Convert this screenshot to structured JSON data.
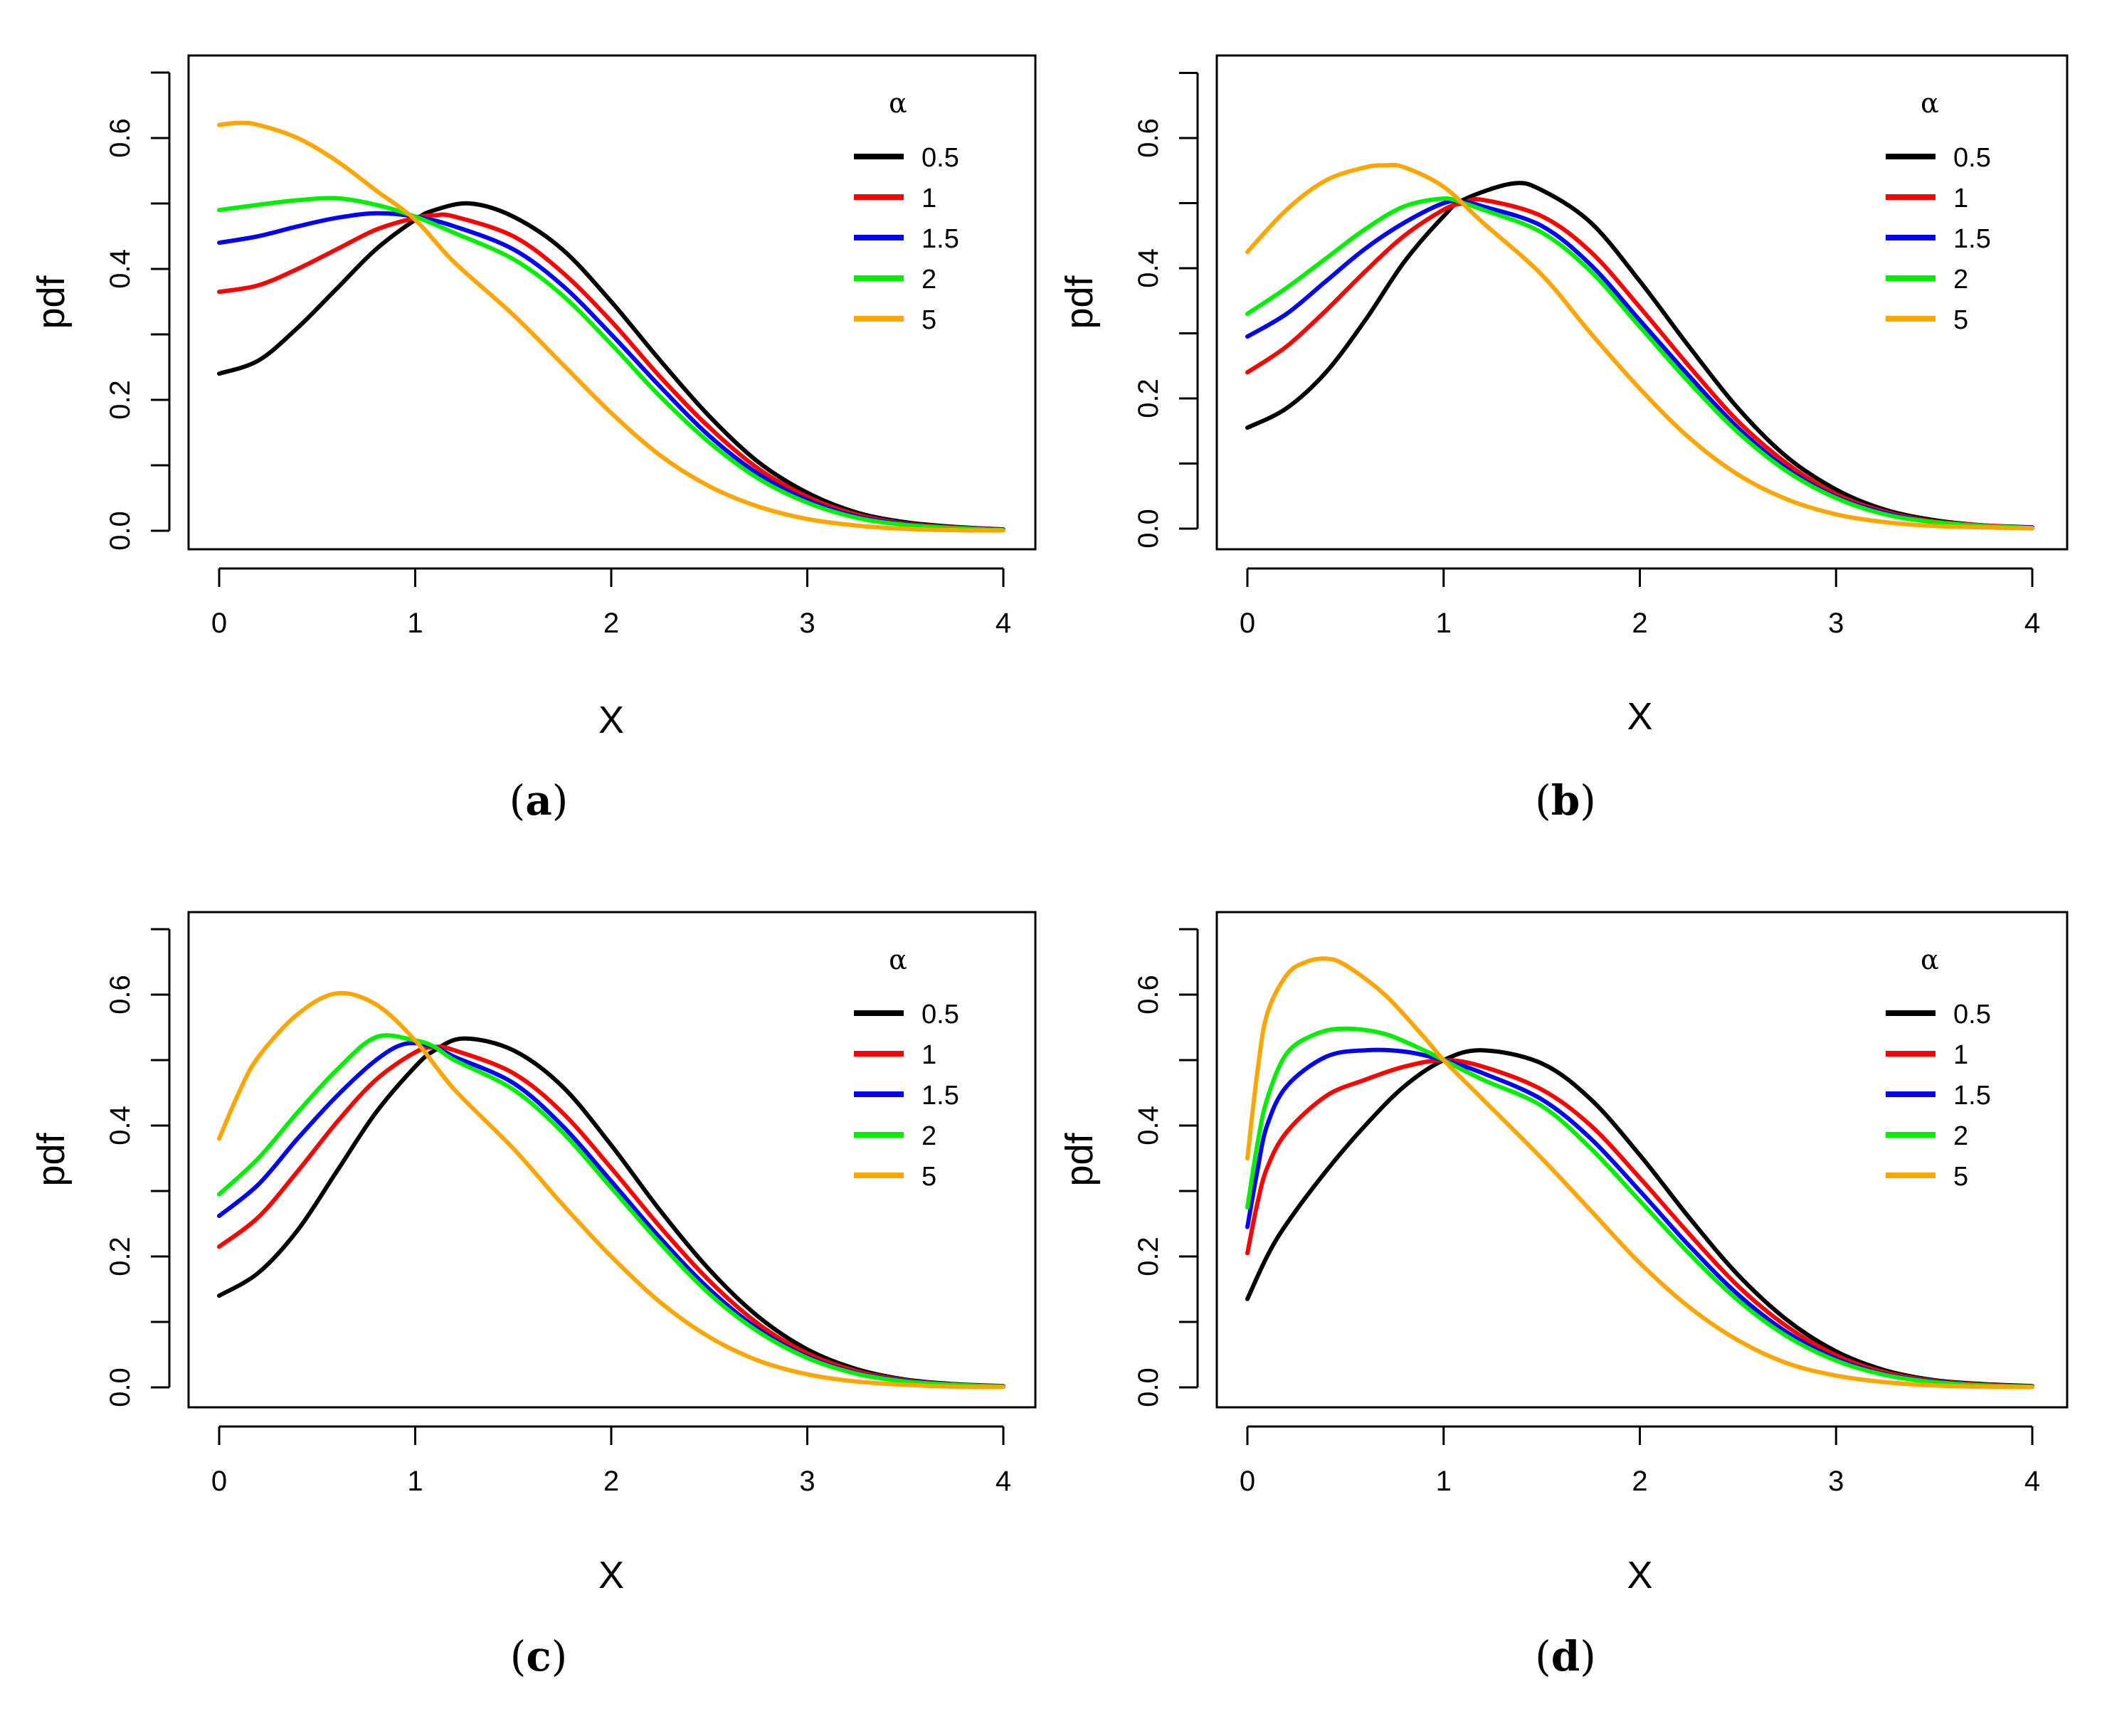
{
  "figure": {
    "legend_title": "α",
    "series_colors": [
      "#000000",
      "#ff0000",
      "#0000ff",
      "#00ee00",
      "#ffa500"
    ]
  },
  "chart_data": [
    {
      "type": "line",
      "panel_label": "(a)",
      "panel_letter": "a",
      "xlabel": "X",
      "ylabel": "pdf",
      "xlim": [
        0,
        4
      ],
      "ylim": [
        0,
        0.7
      ],
      "x_ticks": [
        0,
        1,
        2,
        3,
        4
      ],
      "y_ticks": [
        0.0,
        0.2,
        0.4,
        0.6
      ],
      "y_tick_labels": [
        "0.0",
        "0.2",
        "0.4",
        "0.6"
      ],
      "legend_title": "α",
      "legend_position": "top-right",
      "series": [
        {
          "name": "0.5",
          "color": "#000000",
          "x": [
            0,
            0.2,
            0.4,
            0.6,
            0.8,
            1.0,
            1.1,
            1.28,
            1.5,
            1.75,
            2.0,
            2.25,
            2.5,
            2.75,
            3.0,
            3.25,
            3.5,
            3.75,
            4.0
          ],
          "y": [
            0.24,
            0.26,
            0.31,
            0.37,
            0.43,
            0.475,
            0.49,
            0.5,
            0.48,
            0.43,
            0.35,
            0.26,
            0.175,
            0.105,
            0.058,
            0.028,
            0.013,
            0.006,
            0.002
          ]
        },
        {
          "name": "1",
          "color": "#ff0000",
          "x": [
            0,
            0.2,
            0.4,
            0.6,
            0.8,
            1.0,
            1.1,
            1.2,
            1.5,
            1.75,
            2.0,
            2.25,
            2.5,
            2.75,
            3.0,
            3.25,
            3.5,
            3.75,
            4.0
          ],
          "y": [
            0.365,
            0.375,
            0.4,
            0.43,
            0.46,
            0.478,
            0.482,
            0.48,
            0.45,
            0.395,
            0.32,
            0.235,
            0.158,
            0.095,
            0.052,
            0.025,
            0.011,
            0.005,
            0.002
          ]
        },
        {
          "name": "1.5",
          "color": "#0000ff",
          "x": [
            0,
            0.2,
            0.4,
            0.6,
            0.8,
            1.0,
            1.2,
            1.5,
            1.75,
            2.0,
            2.25,
            2.5,
            2.75,
            3.0,
            3.25,
            3.5,
            3.75,
            4.0
          ],
          "y": [
            0.44,
            0.45,
            0.465,
            0.478,
            0.485,
            0.48,
            0.465,
            0.43,
            0.375,
            0.3,
            0.22,
            0.145,
            0.087,
            0.047,
            0.022,
            0.01,
            0.004,
            0.002
          ]
        },
        {
          "name": "2",
          "color": "#00ee00",
          "x": [
            0,
            0.2,
            0.4,
            0.6,
            0.8,
            1.0,
            1.2,
            1.5,
            1.75,
            2.0,
            2.25,
            2.5,
            2.75,
            3.0,
            3.25,
            3.5,
            3.75,
            4.0
          ],
          "y": [
            0.49,
            0.498,
            0.505,
            0.508,
            0.498,
            0.48,
            0.455,
            0.415,
            0.36,
            0.285,
            0.205,
            0.135,
            0.08,
            0.043,
            0.02,
            0.009,
            0.004,
            0.001
          ]
        },
        {
          "name": "5",
          "color": "#ffa500",
          "x": [
            0,
            0.1,
            0.2,
            0.4,
            0.6,
            0.8,
            1.0,
            1.2,
            1.5,
            1.75,
            2.0,
            2.25,
            2.5,
            2.75,
            3.0,
            3.25,
            3.5,
            3.75,
            4.0
          ],
          "y": [
            0.62,
            0.623,
            0.62,
            0.6,
            0.565,
            0.52,
            0.475,
            0.41,
            0.33,
            0.255,
            0.18,
            0.115,
            0.068,
            0.037,
            0.018,
            0.008,
            0.003,
            0.001,
            0.0005
          ]
        }
      ]
    },
    {
      "type": "line",
      "panel_label": "(b)",
      "panel_letter": "b",
      "xlabel": "X",
      "ylabel": "pdf",
      "xlim": [
        0,
        4
      ],
      "ylim": [
        0,
        0.7
      ],
      "x_ticks": [
        0,
        1,
        2,
        3,
        4
      ],
      "y_ticks": [
        0.0,
        0.2,
        0.4,
        0.6
      ],
      "y_tick_labels": [
        "0.0",
        "0.2",
        "0.4",
        "0.6"
      ],
      "legend_title": "α",
      "legend_position": "top-right",
      "series": [
        {
          "name": "0.5",
          "color": "#000000",
          "x": [
            0,
            0.2,
            0.4,
            0.6,
            0.8,
            1.0,
            1.1,
            1.35,
            1.5,
            1.75,
            2.0,
            2.25,
            2.5,
            2.75,
            3.0,
            3.25,
            3.5,
            3.75,
            4.0
          ],
          "y": [
            0.155,
            0.185,
            0.24,
            0.32,
            0.41,
            0.48,
            0.505,
            0.53,
            0.52,
            0.47,
            0.38,
            0.28,
            0.185,
            0.11,
            0.06,
            0.029,
            0.013,
            0.005,
            0.002
          ]
        },
        {
          "name": "1",
          "color": "#ff0000",
          "x": [
            0,
            0.2,
            0.4,
            0.6,
            0.8,
            1.0,
            1.1,
            1.2,
            1.5,
            1.75,
            2.0,
            2.25,
            2.5,
            2.75,
            3.0,
            3.25,
            3.5,
            3.75,
            4.0
          ],
          "y": [
            0.24,
            0.28,
            0.335,
            0.395,
            0.45,
            0.49,
            0.5,
            0.505,
            0.48,
            0.425,
            0.34,
            0.25,
            0.165,
            0.1,
            0.053,
            0.026,
            0.011,
            0.005,
            0.002
          ]
        },
        {
          "name": "1.5",
          "color": "#0000ff",
          "x": [
            0,
            0.2,
            0.4,
            0.6,
            0.8,
            1.0,
            1.1,
            1.2,
            1.5,
            1.75,
            2.0,
            2.25,
            2.5,
            2.75,
            3.0,
            3.25,
            3.5,
            3.75,
            4.0
          ],
          "y": [
            0.295,
            0.33,
            0.38,
            0.43,
            0.47,
            0.5,
            0.502,
            0.495,
            0.465,
            0.405,
            0.32,
            0.235,
            0.155,
            0.092,
            0.049,
            0.024,
            0.01,
            0.004,
            0.002
          ]
        },
        {
          "name": "2",
          "color": "#00ee00",
          "x": [
            0,
            0.2,
            0.4,
            0.6,
            0.8,
            1.0,
            1.1,
            1.2,
            1.5,
            1.75,
            2.0,
            2.25,
            2.5,
            2.75,
            3.0,
            3.25,
            3.5,
            3.75,
            4.0
          ],
          "y": [
            0.33,
            0.37,
            0.415,
            0.46,
            0.495,
            0.507,
            0.5,
            0.49,
            0.455,
            0.395,
            0.31,
            0.225,
            0.148,
            0.088,
            0.047,
            0.022,
            0.01,
            0.004,
            0.001
          ]
        },
        {
          "name": "5",
          "color": "#ffa500",
          "x": [
            0,
            0.2,
            0.4,
            0.6,
            0.7,
            0.8,
            1.0,
            1.2,
            1.5,
            1.75,
            2.0,
            2.25,
            2.5,
            2.75,
            3.0,
            3.25,
            3.5,
            3.75,
            4.0
          ],
          "y": [
            0.425,
            0.49,
            0.535,
            0.555,
            0.558,
            0.555,
            0.525,
            0.47,
            0.39,
            0.3,
            0.215,
            0.14,
            0.083,
            0.045,
            0.022,
            0.01,
            0.004,
            0.002,
            0.0005
          ]
        }
      ]
    },
    {
      "type": "line",
      "panel_label": "(c)",
      "panel_letter": "c",
      "xlabel": "X",
      "ylabel": "pdf",
      "xlim": [
        0,
        4
      ],
      "ylim": [
        0,
        0.7
      ],
      "x_ticks": [
        0,
        1,
        2,
        3,
        4
      ],
      "y_ticks": [
        0.0,
        0.2,
        0.4,
        0.6
      ],
      "y_tick_labels": [
        "0.0",
        "0.2",
        "0.4",
        "0.6"
      ],
      "legend_title": "α",
      "legend_position": "top-right",
      "series": [
        {
          "name": "0.5",
          "color": "#000000",
          "x": [
            0,
            0.2,
            0.4,
            0.6,
            0.8,
            1.0,
            1.1,
            1.25,
            1.5,
            1.75,
            2.0,
            2.25,
            2.5,
            2.75,
            3.0,
            3.25,
            3.5,
            3.75,
            4.0
          ],
          "y": [
            0.14,
            0.175,
            0.24,
            0.33,
            0.42,
            0.49,
            0.515,
            0.533,
            0.515,
            0.46,
            0.37,
            0.27,
            0.18,
            0.108,
            0.058,
            0.028,
            0.012,
            0.005,
            0.002
          ]
        },
        {
          "name": "1",
          "color": "#ff0000",
          "x": [
            0,
            0.2,
            0.4,
            0.6,
            0.8,
            1.0,
            1.1,
            1.2,
            1.5,
            1.75,
            2.0,
            2.25,
            2.5,
            2.75,
            3.0,
            3.25,
            3.5,
            3.75,
            4.0
          ],
          "y": [
            0.215,
            0.26,
            0.33,
            0.405,
            0.47,
            0.512,
            0.52,
            0.515,
            0.48,
            0.42,
            0.335,
            0.245,
            0.163,
            0.097,
            0.052,
            0.025,
            0.011,
            0.004,
            0.002
          ]
        },
        {
          "name": "1.5",
          "color": "#0000ff",
          "x": [
            0,
            0.2,
            0.4,
            0.6,
            0.8,
            0.95,
            1.1,
            1.2,
            1.5,
            1.75,
            2.0,
            2.25,
            2.5,
            2.75,
            3.0,
            3.25,
            3.5,
            3.75,
            4.0
          ],
          "y": [
            0.262,
            0.31,
            0.38,
            0.445,
            0.5,
            0.525,
            0.52,
            0.505,
            0.465,
            0.4,
            0.315,
            0.228,
            0.15,
            0.089,
            0.047,
            0.022,
            0.01,
            0.004,
            0.001
          ]
        },
        {
          "name": "2",
          "color": "#00ee00",
          "x": [
            0,
            0.2,
            0.4,
            0.6,
            0.8,
            1.0,
            1.1,
            1.2,
            1.5,
            1.75,
            2.0,
            2.25,
            2.5,
            2.75,
            3.0,
            3.25,
            3.5,
            3.75,
            4.0
          ],
          "y": [
            0.295,
            0.35,
            0.42,
            0.485,
            0.535,
            0.53,
            0.52,
            0.5,
            0.455,
            0.39,
            0.305,
            0.22,
            0.143,
            0.085,
            0.045,
            0.021,
            0.009,
            0.004,
            0.001
          ]
        },
        {
          "name": "5",
          "color": "#ffa500",
          "x": [
            0,
            0.1,
            0.2,
            0.4,
            0.6,
            0.8,
            1.0,
            1.2,
            1.5,
            1.75,
            2.0,
            2.25,
            2.5,
            2.75,
            3.0,
            3.25,
            3.5,
            3.75,
            4.0
          ],
          "y": [
            0.38,
            0.45,
            0.505,
            0.57,
            0.602,
            0.585,
            0.53,
            0.455,
            0.365,
            0.28,
            0.2,
            0.13,
            0.077,
            0.041,
            0.02,
            0.009,
            0.004,
            0.001,
            0.0005
          ]
        }
      ]
    },
    {
      "type": "line",
      "panel_label": "(d)",
      "panel_letter": "d",
      "xlabel": "X",
      "ylabel": "pdf",
      "xlim": [
        0,
        4
      ],
      "ylim": [
        0,
        0.7
      ],
      "x_ticks": [
        0,
        1,
        2,
        3,
        4
      ],
      "y_ticks": [
        0.0,
        0.2,
        0.4,
        0.6
      ],
      "y_tick_labels": [
        "0.0",
        "0.2",
        "0.4",
        "0.6"
      ],
      "legend_title": "α",
      "legend_position": "top-right",
      "series": [
        {
          "name": "0.5",
          "color": "#000000",
          "x": [
            0,
            0.1,
            0.2,
            0.4,
            0.6,
            0.8,
            1.0,
            1.2,
            1.5,
            1.75,
            2.0,
            2.25,
            2.5,
            2.75,
            3.0,
            3.25,
            3.5,
            3.75,
            4.0
          ],
          "y": [
            0.135,
            0.2,
            0.25,
            0.33,
            0.4,
            0.46,
            0.5,
            0.515,
            0.495,
            0.44,
            0.355,
            0.26,
            0.172,
            0.103,
            0.055,
            0.026,
            0.011,
            0.005,
            0.002
          ]
        },
        {
          "name": "1",
          "color": "#ff0000",
          "x": [
            0,
            0.05,
            0.1,
            0.2,
            0.4,
            0.6,
            0.8,
            1.0,
            1.2,
            1.5,
            1.75,
            2.0,
            2.25,
            2.5,
            2.75,
            3.0,
            3.25,
            3.5,
            3.75,
            4.0
          ],
          "y": [
            0.205,
            0.28,
            0.335,
            0.39,
            0.445,
            0.47,
            0.49,
            0.5,
            0.49,
            0.455,
            0.4,
            0.32,
            0.235,
            0.155,
            0.093,
            0.049,
            0.023,
            0.01,
            0.004,
            0.001
          ]
        },
        {
          "name": "1.5",
          "color": "#0000ff",
          "x": [
            0,
            0.05,
            0.1,
            0.2,
            0.4,
            0.6,
            0.8,
            1.0,
            1.2,
            1.5,
            1.75,
            2.0,
            2.25,
            2.5,
            2.75,
            3.0,
            3.25,
            3.5,
            3.75,
            4.0
          ],
          "y": [
            0.245,
            0.33,
            0.4,
            0.46,
            0.505,
            0.515,
            0.513,
            0.5,
            0.48,
            0.44,
            0.38,
            0.3,
            0.217,
            0.142,
            0.084,
            0.044,
            0.02,
            0.009,
            0.003,
            0.001
          ]
        },
        {
          "name": "2",
          "color": "#00ee00",
          "x": [
            0,
            0.05,
            0.1,
            0.2,
            0.35,
            0.5,
            0.7,
            0.9,
            1.0,
            1.2,
            1.5,
            1.75,
            2.0,
            2.25,
            2.5,
            2.75,
            3.0,
            3.25,
            3.5,
            3.75,
            4.0
          ],
          "y": [
            0.275,
            0.37,
            0.44,
            0.51,
            0.54,
            0.548,
            0.54,
            0.515,
            0.5,
            0.47,
            0.43,
            0.365,
            0.285,
            0.205,
            0.133,
            0.078,
            0.041,
            0.019,
            0.008,
            0.003,
            0.001
          ]
        },
        {
          "name": "5",
          "color": "#ffa500",
          "x": [
            0,
            0.05,
            0.1,
            0.2,
            0.3,
            0.4,
            0.5,
            0.7,
            0.9,
            1.0,
            1.2,
            1.5,
            1.75,
            2.0,
            2.25,
            2.5,
            2.75,
            3.0,
            3.25,
            3.5,
            3.75,
            4.0
          ],
          "y": [
            0.35,
            0.48,
            0.57,
            0.63,
            0.65,
            0.655,
            0.645,
            0.6,
            0.535,
            0.5,
            0.44,
            0.35,
            0.27,
            0.19,
            0.123,
            0.072,
            0.037,
            0.018,
            0.008,
            0.003,
            0.001,
            0.0005
          ]
        }
      ]
    }
  ]
}
